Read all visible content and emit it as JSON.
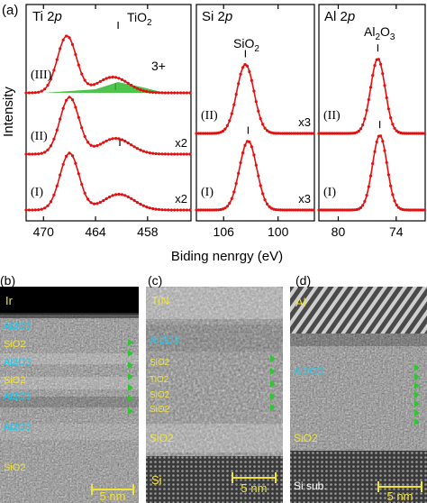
{
  "figure": {
    "panel_a_label": "(a)",
    "panel_b_label": "(b)",
    "panel_c_label": "(c)",
    "panel_d_label": "(d)",
    "ylabel": "Intensity",
    "xlabel": "Biding nenrgy (eV)"
  },
  "chart_data": [
    {
      "type": "line",
      "title_main": "Ti 2",
      "title_italic": "p",
      "xlim": [
        472,
        453
      ],
      "ticks": [
        470,
        464,
        458
      ],
      "peak_label_main": "TiO",
      "peak_label_sub": "2",
      "extra_label": "3+",
      "series": [
        {
          "name": "(I)",
          "scale": "x2",
          "peaks": [
            {
              "x": 467.0,
              "h": 0.9
            },
            {
              "x": 461.3,
              "h": 0.25
            }
          ],
          "vmark": 461.2
        },
        {
          "name": "(II)",
          "scale": "x2",
          "peaks": [
            {
              "x": 467.0,
              "h": 0.9
            },
            {
              "x": 461.7,
              "h": 0.25
            }
          ],
          "vmark": 461.7
        },
        {
          "name": "(III)",
          "scale": "",
          "peaks": [
            {
              "x": 467.3,
              "h": 0.9
            },
            {
              "x": 462.0,
              "h": 0.25
            }
          ],
          "vmark": 461.4
        }
      ]
    },
    {
      "type": "line",
      "title_main": "Si 2",
      "title_italic": "p",
      "xlim": [
        109,
        96
      ],
      "ticks": [
        106,
        100
      ],
      "peak_label_main": "SiO",
      "peak_label_sub": "2",
      "series": [
        {
          "name": "(I)",
          "scale": "x3",
          "peaks": [
            {
              "x": 103.3,
              "h": 0.9
            }
          ],
          "vmark": 103.3
        },
        {
          "name": "(II)",
          "scale": "x3",
          "peaks": [
            {
              "x": 103.6,
              "h": 0.9
            }
          ],
          "vmark": 103.6
        }
      ]
    },
    {
      "type": "line",
      "title_main": "Al 2",
      "title_italic": "p",
      "xlim": [
        82,
        71
      ],
      "ticks": [
        80,
        74
      ],
      "peak_label_main": "Al",
      "peak_label_sub": "2",
      "peak_label_main2": "O",
      "peak_label_sub2": "3",
      "series": [
        {
          "name": "(I)",
          "scale": "",
          "peaks": [
            {
              "x": 75.7,
              "h": 0.9
            }
          ],
          "vmark": 75.7
        },
        {
          "name": "(II)",
          "scale": "",
          "peaks": [
            {
              "x": 75.9,
              "h": 0.9
            }
          ],
          "vmark": 75.9
        }
      ]
    }
  ],
  "tem": {
    "b": {
      "top": "Ir",
      "layers": [
        "Al2O3",
        "SiO2",
        "Al2O3",
        "SiO2",
        "Al2O3",
        "Al2O3"
      ],
      "bottom": "SiO2",
      "scale": "5 nm"
    },
    "c": {
      "top": "TiN",
      "layers": [
        "Al2O3",
        "SiO2",
        "TiO2",
        "SiO2",
        "SiO2"
      ],
      "bottom_layer": "SiO2",
      "substrate": "Si",
      "scale": "5 nm"
    },
    "d": {
      "top": "Al",
      "layers": [
        "Al2O3"
      ],
      "bottom_layer": "SiO2",
      "substrate": "Si sub.",
      "scale": "5 nm"
    }
  },
  "colors": {
    "curve": "#e41010",
    "shade": "#2fb82f",
    "cyan": "#27c6e6",
    "yellow": "#f1e436",
    "arrow": "#33c433"
  }
}
